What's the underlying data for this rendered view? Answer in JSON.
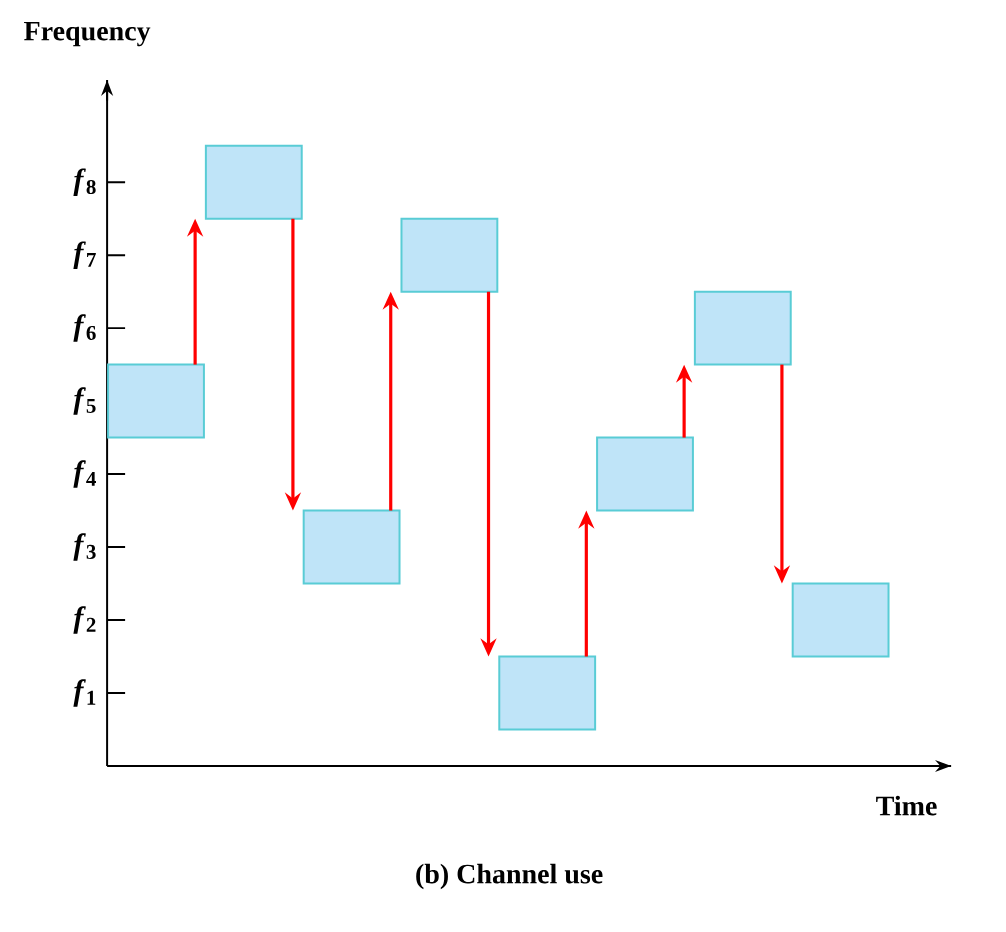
{
  "chart_data": {
    "type": "bar",
    "title": "(b) Channel use",
    "xlabel": "Time",
    "ylabel": "Frequency",
    "categories": [
      null,
      null,
      null,
      null,
      null,
      null,
      null,
      null
    ],
    "values": [
      1,
      1,
      1,
      1,
      1,
      1,
      1,
      1
    ],
    "base": [
      4.5,
      7.5,
      2.5,
      6.5,
      0.5,
      3.5,
      5.5,
      1.5
    ],
    "color": "#bfe4f8",
    "ylim": [
      0,
      9.4
    ],
    "yticks": [
      {
        "value": 1,
        "label": "*f*$_{1}$"
      },
      {
        "value": 2,
        "label": "*f*$_{2}$"
      },
      {
        "value": 3,
        "label": "*f*$_{3}$"
      },
      {
        "value": 4,
        "label": "*f*$_{4}$"
      },
      {
        "value": 5,
        "label": "*f*$_{5}$"
      },
      {
        "value": 6,
        "label": "*f*$_{6}$"
      },
      {
        "value": 7,
        "label": "*f*$_{7}$"
      },
      {
        "value": 8,
        "label": "*f*$_{8}$"
      }
    ],
    "tick_labels": "y"
  }
}
